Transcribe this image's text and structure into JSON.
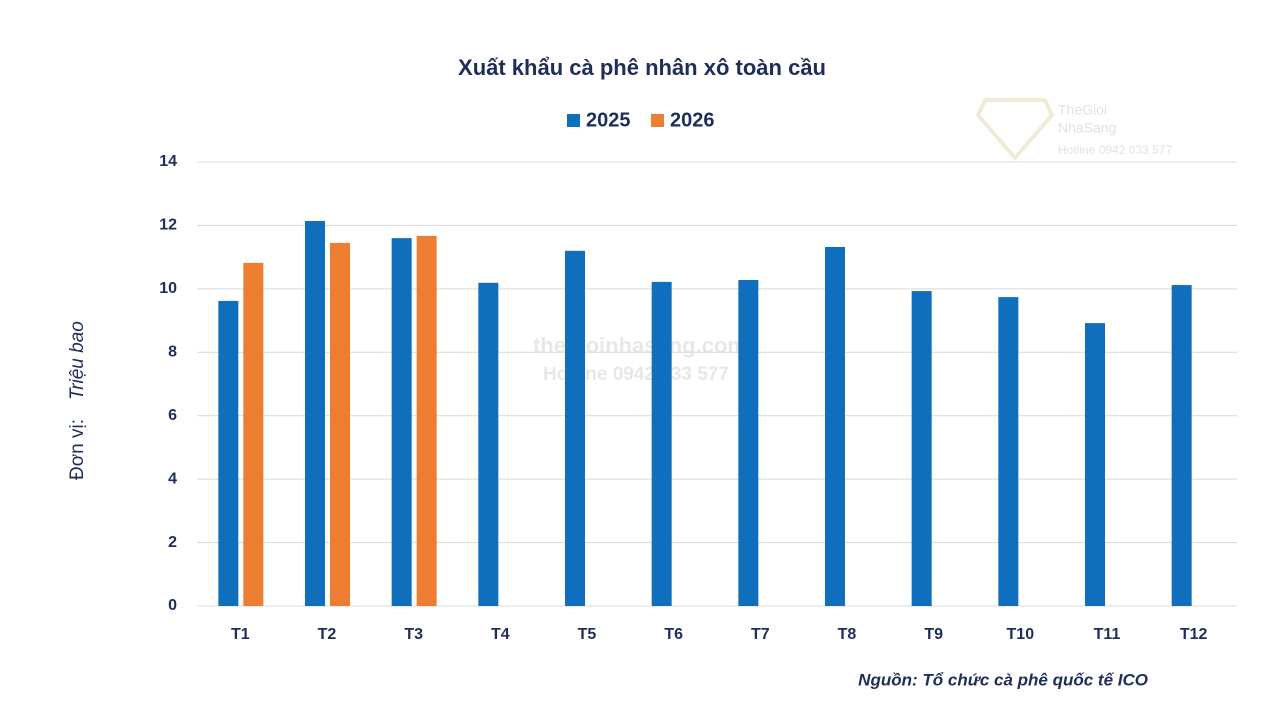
{
  "chart_data": {
    "type": "bar",
    "title": "Xuất khẩu cà phê nhân xô toàn cầu",
    "y_label_prefix": "Đơn vị:",
    "y_label": "Triệu bao",
    "source": "Nguồn: Tổ chức cà phê quốc tế ICO",
    "watermark": [
      "thegioinhasang.com",
      "Hotline 0942 033 577"
    ],
    "logo": [
      "TheGioi",
      "NhaSang",
      "Hotline 0942 033 577"
    ],
    "categories": [
      "T1",
      "T2",
      "T3",
      "T4",
      "T5",
      "T6",
      "T7",
      "T8",
      "T9",
      "T10",
      "T11",
      "T12"
    ],
    "series": [
      {
        "name": "2025",
        "color": "#0f6fbc",
        "values": [
          9.62,
          12.14,
          11.6,
          10.19,
          11.2,
          10.22,
          10.28,
          11.32,
          9.93,
          9.74,
          8.92,
          10.12
        ]
      },
      {
        "name": "2026",
        "color": "#ed7d31",
        "values": [
          10.82,
          11.45,
          11.67,
          null,
          null,
          null,
          null,
          null,
          null,
          null,
          null,
          null
        ]
      }
    ],
    "ylim": [
      0,
      14
    ],
    "yticks": [
      0,
      2,
      4,
      6,
      8,
      10,
      12,
      14
    ],
    "grid": true,
    "legend": "top"
  }
}
